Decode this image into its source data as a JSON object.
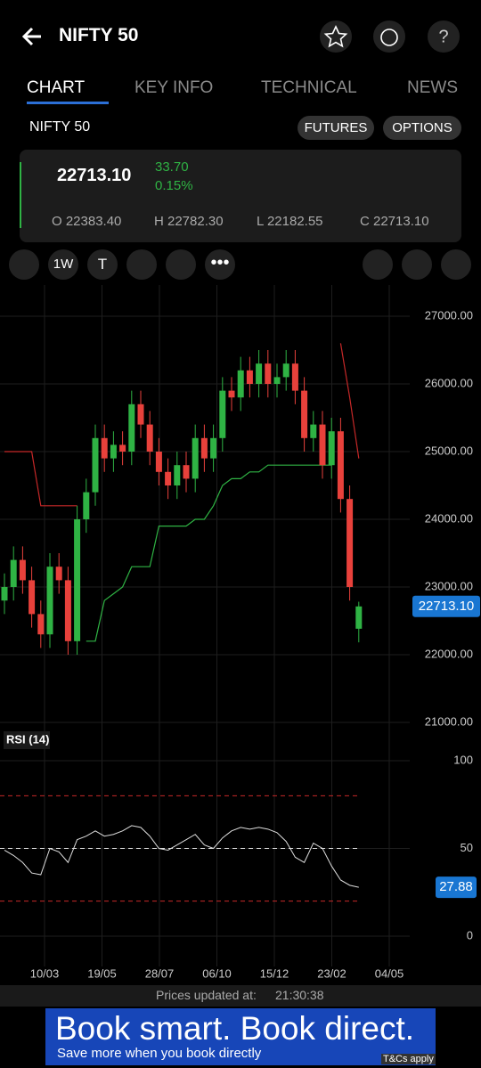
{
  "header": {
    "title": "NIFTY 50"
  },
  "tabs": [
    "CHART",
    "KEY INFO",
    "TECHNICAL",
    "NEWS"
  ],
  "symbol": "NIFTY 50",
  "buttons": [
    "FUTURES",
    "OPTIONS"
  ],
  "quote": {
    "price": "22713.10",
    "change": "33.70",
    "change_pct": "0.15%",
    "ohlc": [
      "O 22383.40",
      "H 22782.30",
      "L 22182.55",
      "C 22713.10"
    ]
  },
  "toolbar": {
    "interval": "1W",
    "text_tool": "T"
  },
  "chart_data": [
    {
      "type": "candlestick",
      "open": [
        22800,
        23000,
        23400,
        23100,
        22600,
        22300,
        23300,
        23100,
        22200,
        24000,
        24400,
        25200,
        24900,
        25100,
        25000,
        25700,
        25400,
        25000,
        24700,
        24500,
        24800,
        24600,
        25200,
        24900,
        25200,
        25900,
        25800,
        26200,
        26000,
        26300,
        26000,
        26100,
        26300,
        25900,
        25200,
        25400,
        24800,
        25300,
        24300,
        22383.4
      ],
      "high": [
        23200,
        23600,
        23600,
        23300,
        22800,
        23500,
        23500,
        23300,
        24200,
        24600,
        25400,
        25400,
        25300,
        25300,
        25900,
        25900,
        25600,
        25200,
        24900,
        25000,
        25000,
        25400,
        25400,
        25400,
        26100,
        26100,
        26400,
        26400,
        26500,
        26500,
        26300,
        26500,
        26500,
        26100,
        25600,
        25600,
        25500,
        25500,
        24500,
        22782.3
      ],
      "low": [
        22600,
        22800,
        22900,
        22400,
        22100,
        22100,
        22900,
        22000,
        22000,
        23800,
        24200,
        24700,
        24700,
        24800,
        24800,
        25200,
        24800,
        24500,
        24300,
        24300,
        24400,
        24400,
        24700,
        24700,
        25000,
        25600,
        25600,
        25800,
        25800,
        25800,
        25800,
        25900,
        25700,
        25000,
        25000,
        24600,
        24600,
        24100,
        22800,
        22182.55
      ],
      "close": [
        23000,
        23400,
        23100,
        22600,
        22300,
        23300,
        23100,
        22200,
        24000,
        24400,
        25200,
        24900,
        25100,
        25000,
        25700,
        25400,
        25000,
        24700,
        24500,
        24800,
        24600,
        25200,
        24900,
        25200,
        25900,
        25800,
        26200,
        26000,
        26300,
        26000,
        26100,
        26300,
        25900,
        25200,
        25400,
        24800,
        25300,
        24300,
        23000,
        22713.1
      ],
      "close_label": "22713.10",
      "supertrend_upper": [
        25000,
        25000,
        25000,
        25000,
        24200,
        24200,
        24200,
        24200,
        24200,
        null,
        null,
        null,
        null,
        null,
        null,
        null,
        null,
        null,
        null,
        null,
        null,
        null,
        null,
        null,
        null,
        null,
        null,
        null,
        null,
        null,
        null,
        null,
        null,
        null,
        null,
        null,
        null,
        26600,
        25800,
        24900
      ],
      "supertrend_lower": [
        null,
        null,
        null,
        null,
        null,
        null,
        null,
        null,
        null,
        22200,
        22200,
        22800,
        22900,
        23000,
        23300,
        23300,
        23300,
        23900,
        23900,
        23900,
        23900,
        24000,
        24000,
        24200,
        24500,
        24600,
        24600,
        24700,
        24700,
        24800,
        24800,
        24800,
        24800,
        24800,
        24800,
        24800,
        24800,
        null,
        null,
        null
      ],
      "up_color": "#2fb344",
      "down_color": "#e8413b",
      "ylim": [
        21000,
        27000
      ],
      "yticks": [
        {
          "value": 21000,
          "label": "21000.00"
        },
        {
          "value": 22000,
          "label": "22000.00"
        },
        {
          "value": 23000,
          "label": "23000.00"
        },
        {
          "value": 24000,
          "label": "24000.00"
        },
        {
          "value": 25000,
          "label": "25000.00"
        },
        {
          "value": 26000,
          "label": "26000.00"
        },
        {
          "value": 27000,
          "label": "27000.00"
        }
      ],
      "xtick_labels": [
        "10/03",
        "19/05",
        "28/07",
        "06/10",
        "15/12",
        "23/02",
        "04/05"
      ]
    },
    {
      "type": "line",
      "title": "RSI (14)",
      "values": [
        49,
        46,
        42,
        36,
        35,
        50,
        48,
        42,
        55,
        57,
        60,
        57,
        58,
        60,
        63,
        62,
        57,
        50,
        49,
        52,
        55,
        58,
        52,
        50,
        56,
        60,
        62,
        61,
        62,
        61,
        59,
        54,
        45,
        42,
        53,
        50,
        40,
        32,
        29,
        27.88
      ],
      "levels": [
        20,
        50,
        80
      ],
      "ylim": [
        0,
        100
      ],
      "yticks": [
        0,
        50,
        100
      ],
      "color": "#dddddd"
    }
  ],
  "footer": {
    "label": "Prices updated at:",
    "time": "21:30:38"
  },
  "ad": {
    "headline": "Book smart. Book direct.",
    "sub": "Save more when you book directly",
    "tc": "T&Cs apply"
  }
}
